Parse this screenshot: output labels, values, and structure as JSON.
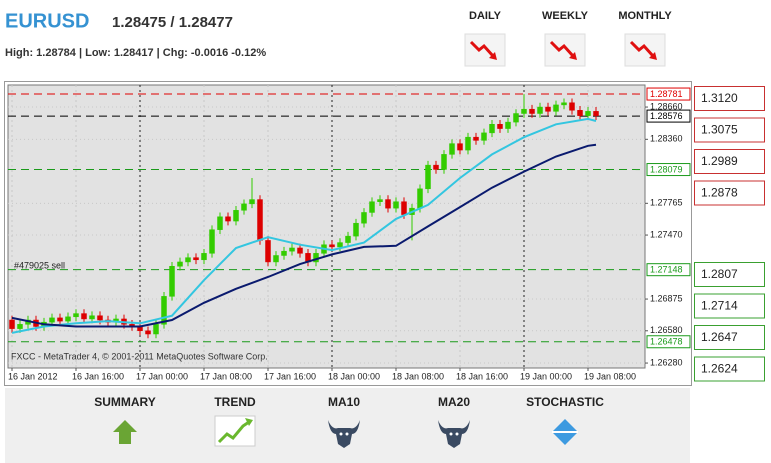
{
  "header": {
    "symbol": "EURUSD",
    "quote": "1.28475 / 1.28477",
    "stats": "High: 1.28784 | Low: 1.28417 | Chg: -0.0016 -0.12%",
    "periods": [
      "DAILY",
      "WEEKLY",
      "MONTHLY"
    ]
  },
  "chart_data": {
    "type": "candlestick",
    "watermark": "FXCC - MetaTrader 4, © 2001-2011 MetaQuotes Software Corp.",
    "annotation": "#479025 sell",
    "candles": {
      "open": [
        1.2668,
        1.266,
        1.2664,
        1.2668,
        1.2662,
        1.2666,
        1.267,
        1.2667,
        1.2671,
        1.2674,
        1.2669,
        1.2672,
        1.2668,
        1.2666,
        1.2669,
        1.2664,
        1.2662,
        1.2658,
        1.2655,
        1.2664,
        1.269,
        1.2718,
        1.2722,
        1.2726,
        1.2724,
        1.273,
        1.2752,
        1.2764,
        1.276,
        1.277,
        1.2776,
        1.278,
        1.2742,
        1.2722,
        1.2728,
        1.2732,
        1.2735,
        1.273,
        1.2722,
        1.273,
        1.2738,
        1.2736,
        1.274,
        1.2746,
        1.2758,
        1.2768,
        1.2778,
        1.278,
        1.2772,
        1.2778,
        1.2766,
        1.2772,
        1.279,
        1.2812,
        1.2808,
        1.2822,
        1.2832,
        1.2826,
        1.2838,
        1.2835,
        1.2842,
        1.285,
        1.2846,
        1.2852,
        1.286,
        1.2864,
        1.286,
        1.2866,
        1.2862,
        1.2868,
        1.287,
        1.2863,
        1.2858,
        1.2862
      ],
      "high": [
        1.2672,
        1.2668,
        1.2672,
        1.2672,
        1.267,
        1.2674,
        1.2674,
        1.2675,
        1.2678,
        1.2678,
        1.2676,
        1.2676,
        1.2672,
        1.2673,
        1.2673,
        1.2668,
        1.2666,
        1.2662,
        1.2668,
        1.2694,
        1.2722,
        1.2726,
        1.273,
        1.273,
        1.2734,
        1.2756,
        1.2768,
        1.2768,
        1.2774,
        1.278,
        1.28,
        1.2784,
        1.2746,
        1.2732,
        1.2736,
        1.2739,
        1.2739,
        1.2734,
        1.2734,
        1.2742,
        1.2742,
        1.2744,
        1.275,
        1.2762,
        1.2772,
        1.2782,
        1.2784,
        1.2784,
        1.2782,
        1.2782,
        1.2776,
        1.2794,
        1.2816,
        1.2816,
        1.2826,
        1.2836,
        1.2836,
        1.2842,
        1.2842,
        1.2846,
        1.2854,
        1.2854,
        1.2856,
        1.2864,
        1.2878,
        1.2868,
        1.287,
        1.287,
        1.2872,
        1.2874,
        1.2874,
        1.2867,
        1.2866,
        1.2866
      ],
      "low": [
        1.2656,
        1.2656,
        1.266,
        1.2658,
        1.2658,
        1.2662,
        1.2663,
        1.2663,
        1.2667,
        1.2665,
        1.2665,
        1.2664,
        1.2662,
        1.2662,
        1.266,
        1.2658,
        1.2654,
        1.2651,
        1.2651,
        1.266,
        1.2686,
        1.2714,
        1.2718,
        1.272,
        1.272,
        1.2726,
        1.2748,
        1.2756,
        1.2756,
        1.2766,
        1.2772,
        1.2738,
        1.2718,
        1.2718,
        1.2724,
        1.2728,
        1.2726,
        1.2718,
        1.2718,
        1.2726,
        1.2732,
        1.2732,
        1.2736,
        1.2742,
        1.2754,
        1.2764,
        1.2774,
        1.2768,
        1.2768,
        1.2762,
        1.2742,
        1.2768,
        1.2786,
        1.2804,
        1.2804,
        1.2818,
        1.2822,
        1.2822,
        1.2831,
        1.2831,
        1.2838,
        1.2842,
        1.2842,
        1.2848,
        1.2856,
        1.2856,
        1.2856,
        1.2858,
        1.2858,
        1.2864,
        1.2859,
        1.2854,
        1.2854,
        1.2854
      ],
      "close": [
        1.266,
        1.2664,
        1.2668,
        1.2662,
        1.2666,
        1.267,
        1.2667,
        1.2671,
        1.2674,
        1.2669,
        1.2672,
        1.2668,
        1.2666,
        1.2669,
        1.2664,
        1.2662,
        1.2658,
        1.2655,
        1.2664,
        1.269,
        1.2718,
        1.2722,
        1.2726,
        1.2724,
        1.273,
        1.2752,
        1.2764,
        1.276,
        1.277,
        1.2776,
        1.278,
        1.2742,
        1.2722,
        1.2728,
        1.2732,
        1.2735,
        1.273,
        1.2722,
        1.273,
        1.2738,
        1.2736,
        1.274,
        1.2746,
        1.2758,
        1.2768,
        1.2778,
        1.278,
        1.2772,
        1.2778,
        1.2766,
        1.2772,
        1.279,
        1.2812,
        1.2808,
        1.2822,
        1.2832,
        1.2826,
        1.2838,
        1.2835,
        1.2842,
        1.285,
        1.2846,
        1.2852,
        1.286,
        1.2864,
        1.286,
        1.2866,
        1.2862,
        1.2868,
        1.287,
        1.2863,
        1.2858,
        1.2862,
        1.2858
      ],
      "up_color": "#33cc00",
      "down_color": "#dd0000"
    },
    "series": [
      {
        "color": "#33c6e0",
        "x": [
          0,
          4,
          8,
          12,
          16,
          20,
          24,
          28,
          32,
          36,
          40,
          44,
          48,
          52,
          56,
          60,
          64,
          68,
          72,
          73
        ],
        "values": [
          1.2656,
          1.2662,
          1.2665,
          1.2667,
          1.2665,
          1.2672,
          1.2705,
          1.2735,
          1.2745,
          1.2738,
          1.2733,
          1.274,
          1.2762,
          1.2775,
          1.28,
          1.2822,
          1.2838,
          1.285,
          1.2855,
          1.2853
        ]
      },
      {
        "color": "#0a1a6e",
        "x": [
          0,
          4,
          8,
          12,
          16,
          20,
          24,
          28,
          32,
          36,
          40,
          44,
          48,
          52,
          56,
          60,
          64,
          68,
          72,
          73
        ],
        "values": [
          1.267,
          1.2664,
          1.2662,
          1.2662,
          1.2662,
          1.2668,
          1.2684,
          1.2697,
          1.2708,
          1.272,
          1.2729,
          1.2736,
          1.2737,
          1.2755,
          1.2773,
          1.2791,
          1.2806,
          1.282,
          1.283,
          1.2831
        ]
      }
    ],
    "levels": [
      {
        "value": 1.28781,
        "color": "#e00000"
      },
      {
        "value": 1.28576,
        "color": "#000000"
      },
      {
        "value": 1.28079,
        "color": "#1a9a1a"
      },
      {
        "value": 1.27148,
        "color": "#1a9a1a"
      },
      {
        "value": 1.26478,
        "color": "#1a9a1a"
      }
    ],
    "xlim": [
      -0.5,
      79.125
    ],
    "xticks": [
      {
        "value": 0,
        "label": "16 Jan 2012"
      },
      {
        "value": 8,
        "label": "16 Jan 16:00"
      },
      {
        "value": 16,
        "label": "17 Jan 00:00"
      },
      {
        "value": 24,
        "label": "17 Jan 08:00"
      },
      {
        "value": 32,
        "label": "17 Jan 16:00"
      },
      {
        "value": 40,
        "label": "18 Jan 00:00"
      },
      {
        "value": 48,
        "label": "18 Jan 08:00"
      },
      {
        "value": 56,
        "label": "18 Jan 16:00"
      },
      {
        "value": 64,
        "label": "19 Jan 00:00"
      },
      {
        "value": 72,
        "label": "19 Jan 08:00"
      }
    ],
    "ylim": [
      1.26234,
      1.28865
    ],
    "yticks": [
      {
        "value": 1.2866,
        "label": "1.28660"
      },
      {
        "value": 1.2836,
        "label": "1.28360"
      },
      1.27765,
      {
        "value": 1.2747,
        "label": "1.27470"
      },
      1.26875,
      {
        "value": 1.2658,
        "label": "1.26580"
      },
      {
        "value": 1.2628,
        "label": "1.26280"
      }
    ],
    "grid": true
  },
  "levels_panel": {
    "resistance": [
      "1.3120",
      "1.3075",
      "1.2989",
      "1.2878"
    ],
    "support": [
      "1.2807",
      "1.2714",
      "1.2647",
      "1.2624"
    ]
  },
  "indicators": [
    "SUMMARY",
    "TREND",
    "MA10",
    "MA20",
    "STOCHASTIC"
  ]
}
